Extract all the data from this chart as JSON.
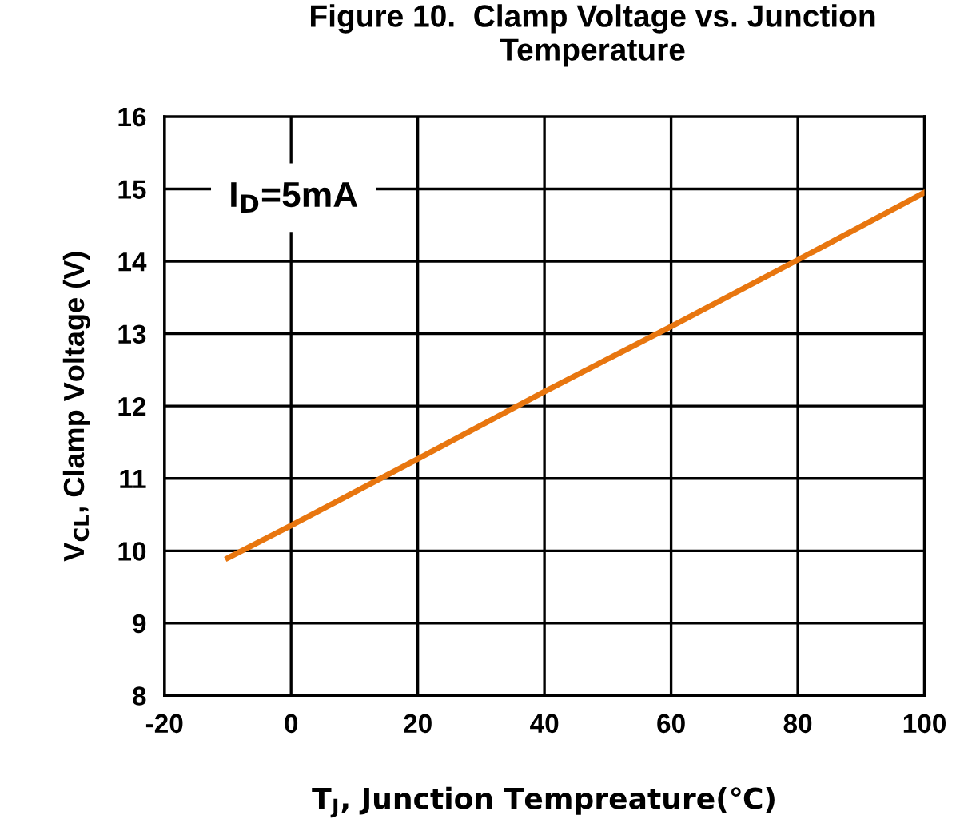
{
  "chart_data": {
    "type": "line",
    "title": "Figure 10.  Clamp Voltage vs. Junction Temperature",
    "xlabel": "T$_{J}$, Junction Tempreature(℃)",
    "ylabel": "V$_{CL}$, Clamp Voltage (V)",
    "annotations": [
      "I$_{D}$=5mA"
    ],
    "series": [
      {
        "color": "#e8760f",
        "x": [
          -10,
          0,
          20,
          40,
          60,
          80,
          100
        ],
        "values": [
          9.9,
          10.35,
          11.27,
          12.2,
          13.1,
          14.02,
          14.95
        ]
      }
    ],
    "xlim": [
      -20,
      100
    ],
    "xticks": [
      -20,
      0,
      20,
      40,
      60,
      80,
      100
    ],
    "ylim": [
      8,
      16
    ],
    "yticks": [
      8,
      9,
      10,
      11,
      12,
      13,
      14,
      15,
      16
    ],
    "grid": true,
    "marker": "none",
    "line_style": "solid"
  }
}
